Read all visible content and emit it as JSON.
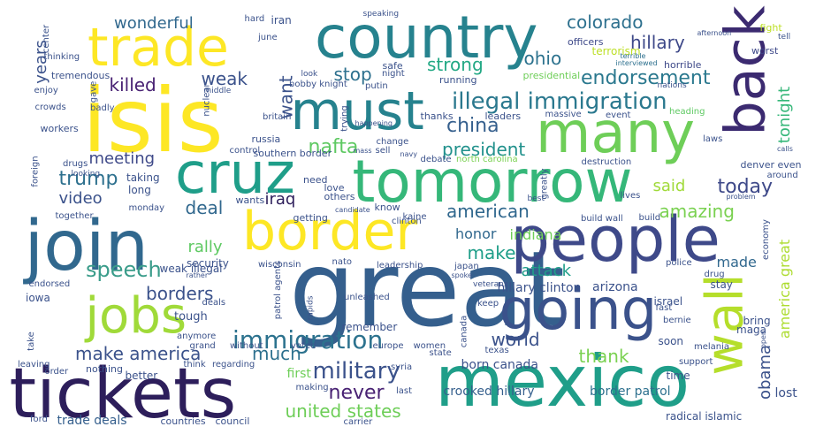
{
  "words": [
    {
      "text": "great",
      "color": "#355f8d"
    },
    {
      "text": "isis",
      "color": "#fde725"
    },
    {
      "text": "mexico",
      "color": "#1f9e89"
    },
    {
      "text": "tickets",
      "color": "#2d1e5b"
    },
    {
      "text": "people",
      "color": "#3e4989"
    },
    {
      "text": "join",
      "color": "#31688e"
    },
    {
      "text": "country",
      "color": "#26828e"
    },
    {
      "text": "tomorrow",
      "color": "#35b779"
    },
    {
      "text": "border",
      "color": "#fde725"
    },
    {
      "text": "many",
      "color": "#6ece58"
    },
    {
      "text": "going",
      "color": "#3b528b"
    },
    {
      "text": "wall",
      "color": "#b5de2b"
    },
    {
      "text": "back",
      "color": "#3b2a70"
    },
    {
      "text": "cruz",
      "color": "#1f9e89"
    },
    {
      "text": "must",
      "color": "#26828e"
    },
    {
      "text": "trade",
      "color": "#fde725"
    },
    {
      "text": "jobs",
      "color": "#a0da39"
    },
    {
      "text": "illegal immigration",
      "color": "#2a788e"
    },
    {
      "text": "immigration",
      "color": "#2c728e"
    },
    {
      "text": "speech",
      "color": "#3a9c8a"
    },
    {
      "text": "make america",
      "color": "#3b528b"
    },
    {
      "text": "trump",
      "color": "#2d708e"
    },
    {
      "text": "military",
      "color": "#3b528b"
    },
    {
      "text": "united states",
      "color": "#6ece58"
    },
    {
      "text": "never",
      "color": "#482173"
    },
    {
      "text": "endorsement",
      "color": "#2a788e"
    },
    {
      "text": "today",
      "color": "#3e4989"
    },
    {
      "text": "china",
      "color": "#355f8d"
    },
    {
      "text": "president",
      "color": "#21918c"
    },
    {
      "text": "nafta",
      "color": "#5ec962"
    },
    {
      "text": "amazing",
      "color": "#7ad151"
    },
    {
      "text": "strong",
      "color": "#22a884"
    },
    {
      "text": "colorado",
      "color": "#2d708e"
    },
    {
      "text": "hillary",
      "color": "#3e4989"
    },
    {
      "text": "ohio",
      "color": "#2c728e"
    },
    {
      "text": "deal",
      "color": "#31688e"
    },
    {
      "text": "thank",
      "color": "#7ad151"
    },
    {
      "text": "obama",
      "color": "#3b528b"
    },
    {
      "text": "world",
      "color": "#3b528b"
    },
    {
      "text": "much",
      "color": "#2d708e"
    },
    {
      "text": "make",
      "color": "#1f9e89"
    },
    {
      "text": "tonight",
      "color": "#35b779"
    },
    {
      "text": "america great",
      "color": "#addc30"
    },
    {
      "text": "american",
      "color": "#31688e"
    },
    {
      "text": "borders",
      "color": "#3b528b"
    },
    {
      "text": "weak",
      "color": "#3b528b"
    },
    {
      "text": "killed",
      "color": "#482173"
    },
    {
      "text": "wonderful",
      "color": "#31688e"
    },
    {
      "text": "stop",
      "color": "#2d708e"
    },
    {
      "text": "want",
      "color": "#3b528b"
    },
    {
      "text": "years",
      "color": "#3b528b"
    },
    {
      "text": "video",
      "color": "#3b528b"
    },
    {
      "text": "meeting",
      "color": "#3e4989"
    },
    {
      "text": "rally",
      "color": "#5ec962"
    },
    {
      "text": "iraq",
      "color": "#2d1e5b"
    },
    {
      "text": "said",
      "color": "#a0da39"
    },
    {
      "text": "indiana",
      "color": "#6ece58"
    },
    {
      "text": "attack",
      "color": "#1f9e89"
    },
    {
      "text": "made",
      "color": "#31688e"
    },
    {
      "text": "honor",
      "color": "#31688e"
    },
    {
      "text": "hillary clinton",
      "color": "#3b528b"
    },
    {
      "text": "arizona",
      "color": "#3b528b"
    },
    {
      "text": "born canada",
      "color": "#3b528b"
    },
    {
      "text": "crooked hillary",
      "color": "#355f8d"
    },
    {
      "text": "border patrol",
      "color": "#2d708e"
    },
    {
      "text": "trade deals",
      "color": "#355f8d"
    },
    {
      "text": "lost",
      "color": "#3b528b"
    },
    {
      "text": "first",
      "color": "#6ece58"
    },
    {
      "text": "tough",
      "color": "#3b528b"
    },
    {
      "text": "security",
      "color": "#3b528b"
    },
    {
      "text": "iowa",
      "color": "#3b528b"
    },
    {
      "text": "taking",
      "color": "#3b528b"
    },
    {
      "text": "long",
      "color": "#3b528b"
    },
    {
      "text": "weak illegal",
      "color": "#3b528b"
    },
    {
      "text": "israel",
      "color": "#3b528b"
    },
    {
      "text": "stay",
      "color": "#3b528b"
    },
    {
      "text": "bring",
      "color": "#3b528b"
    },
    {
      "text": "maga",
      "color": "#3b528b"
    },
    {
      "text": "soon",
      "color": "#3b528b"
    },
    {
      "text": "remember",
      "color": "#3b528b"
    },
    {
      "text": "time",
      "color": "#3b528b"
    },
    {
      "text": "better",
      "color": "#3b528b"
    },
    {
      "text": "nothing",
      "color": "#3b528b"
    },
    {
      "text": "countries",
      "color": "#3b528b"
    },
    {
      "text": "council",
      "color": "#3b528b"
    },
    {
      "text": "iran",
      "color": "#3b528b"
    },
    {
      "text": "hard",
      "color": "#3b528b"
    },
    {
      "text": "terrorism",
      "color": "#bddf26"
    },
    {
      "text": "officers",
      "color": "#3e4989"
    },
    {
      "text": "horrible",
      "color": "#3e4989"
    },
    {
      "text": "worst",
      "color": "#3e4989"
    },
    {
      "text": "fight",
      "color": "#bddf26"
    },
    {
      "text": "tell",
      "color": "#3b528b"
    },
    {
      "text": "afternoon",
      "color": "#3b528b"
    },
    {
      "text": "terrible",
      "color": "#2d708e"
    },
    {
      "text": "interviewed",
      "color": "#2d708e"
    },
    {
      "text": "safe",
      "color": "#3b528b"
    },
    {
      "text": "night",
      "color": "#3b528b"
    },
    {
      "text": "running",
      "color": "#3b528b"
    },
    {
      "text": "presidential",
      "color": "#6ece58"
    },
    {
      "text": "nations",
      "color": "#3b528b"
    },
    {
      "text": "thanks",
      "color": "#3b528b"
    },
    {
      "text": "leaders",
      "color": "#3b528b"
    },
    {
      "text": "massive",
      "color": "#3b528b"
    },
    {
      "text": "event",
      "color": "#3b528b"
    },
    {
      "text": "heading",
      "color": "#5ec962"
    },
    {
      "text": "laws",
      "color": "#3b528b"
    },
    {
      "text": "calls",
      "color": "#3b528b"
    },
    {
      "text": "denver",
      "color": "#3b528b"
    },
    {
      "text": "even",
      "color": "#3b528b"
    },
    {
      "text": "around",
      "color": "#3b528b"
    },
    {
      "text": "problem",
      "color": "#3b528b"
    },
    {
      "text": "destruction",
      "color": "#3b528b"
    },
    {
      "text": "lives",
      "color": "#3b528b"
    },
    {
      "text": "build",
      "color": "#3b528b"
    },
    {
      "text": "build wall",
      "color": "#3b528b"
    },
    {
      "text": "best",
      "color": "#3b528b"
    },
    {
      "text": "greatly",
      "color": "#3b528b"
    },
    {
      "text": "north carolina",
      "color": "#7ad151"
    },
    {
      "text": "debate",
      "color": "#3b528b"
    },
    {
      "text": "southern border",
      "color": "#3b528b"
    },
    {
      "text": "control",
      "color": "#3b528b"
    },
    {
      "text": "russia",
      "color": "#3b528b"
    },
    {
      "text": "mass",
      "color": "#3b528b"
    },
    {
      "text": "sell",
      "color": "#3b528b"
    },
    {
      "text": "navy",
      "color": "#3b528b"
    },
    {
      "text": "change",
      "color": "#3b528b"
    },
    {
      "text": "britain",
      "color": "#3b528b"
    },
    {
      "text": "trying",
      "color": "#3b528b"
    },
    {
      "text": "happening",
      "color": "#3b528b"
    },
    {
      "text": "bobby knight",
      "color": "#3b528b"
    },
    {
      "text": "putin",
      "color": "#3b528b"
    },
    {
      "text": "middle",
      "color": "#3b528b"
    },
    {
      "text": "nuclear",
      "color": "#3b528b"
    },
    {
      "text": "look",
      "color": "#3b528b"
    },
    {
      "text": "june",
      "color": "#3b528b"
    },
    {
      "text": "speaking",
      "color": "#3b528b"
    },
    {
      "text": "center",
      "color": "#3b528b"
    },
    {
      "text": "thinking",
      "color": "#3b528b"
    },
    {
      "text": "tremendous",
      "color": "#3b528b"
    },
    {
      "text": "enjoy",
      "color": "#3b528b"
    },
    {
      "text": "gave",
      "color": "#3b528b"
    },
    {
      "text": "crowds",
      "color": "#3b528b"
    },
    {
      "text": "badly",
      "color": "#3b528b"
    },
    {
      "text": "workers",
      "color": "#3b528b"
    },
    {
      "text": "foreign",
      "color": "#3b528b"
    },
    {
      "text": "drugs",
      "color": "#3b528b"
    },
    {
      "text": "looking",
      "color": "#3b528b"
    },
    {
      "text": "together",
      "color": "#3b528b"
    },
    {
      "text": "monday",
      "color": "#3b528b"
    },
    {
      "text": "wants",
      "color": "#3b528b"
    },
    {
      "text": "others",
      "color": "#3b528b"
    },
    {
      "text": "candidate",
      "color": "#3b528b"
    },
    {
      "text": "know",
      "color": "#3b528b"
    },
    {
      "text": "getting",
      "color": "#3b528b"
    },
    {
      "text": "need",
      "color": "#3b528b"
    },
    {
      "text": "love",
      "color": "#3b528b"
    },
    {
      "text": "kaine",
      "color": "#3b528b"
    },
    {
      "text": "clinton",
      "color": "#3b528b"
    },
    {
      "text": "deals",
      "color": "#3b528b"
    },
    {
      "text": "rather",
      "color": "#3b528b"
    },
    {
      "text": "endorsed",
      "color": "#3b528b"
    },
    {
      "text": "wisconsin",
      "color": "#3b528b"
    },
    {
      "text": "nato",
      "color": "#3b528b"
    },
    {
      "text": "leadership",
      "color": "#3b528b"
    },
    {
      "text": "japan",
      "color": "#3b528b"
    },
    {
      "text": "spoke",
      "color": "#3b528b"
    },
    {
      "text": "veterans",
      "color": "#3b528b"
    },
    {
      "text": "police",
      "color": "#3b528b"
    },
    {
      "text": "drug",
      "color": "#3b528b"
    },
    {
      "text": "economy",
      "color": "#3b528b"
    },
    {
      "text": "patrol agents",
      "color": "#3b528b"
    },
    {
      "text": "rapids",
      "color": "#3b528b"
    },
    {
      "text": "unleashed",
      "color": "#3b528b"
    },
    {
      "text": "keep",
      "color": "#3b528b"
    },
    {
      "text": "canada",
      "color": "#3b528b"
    },
    {
      "text": "fast",
      "color": "#3b528b"
    },
    {
      "text": "take",
      "color": "#3b528b"
    },
    {
      "text": "anymore",
      "color": "#3b528b"
    },
    {
      "text": "grand",
      "color": "#3b528b"
    },
    {
      "text": "without",
      "color": "#3b528b"
    },
    {
      "text": "voted",
      "color": "#3b528b"
    },
    {
      "text": "europe",
      "color": "#3b528b"
    },
    {
      "text": "women",
      "color": "#3b528b"
    },
    {
      "text": "state",
      "color": "#3b528b"
    },
    {
      "text": "texas",
      "color": "#3b528b"
    },
    {
      "text": "bernie",
      "color": "#3b528b"
    },
    {
      "text": "melania",
      "color": "#3b528b"
    },
    {
      "text": "open",
      "color": "#3b528b"
    },
    {
      "text": "support",
      "color": "#3b528b"
    },
    {
      "text": "leaving",
      "color": "#3b528b"
    },
    {
      "text": "order",
      "color": "#3b528b"
    },
    {
      "text": "think",
      "color": "#3b528b"
    },
    {
      "text": "regarding",
      "color": "#3b528b"
    },
    {
      "text": "making",
      "color": "#3b528b"
    },
    {
      "text": "syria",
      "color": "#3b528b"
    },
    {
      "text": "last",
      "color": "#3b528b"
    },
    {
      "text": "ford",
      "color": "#3b528b"
    },
    {
      "text": "carrier",
      "color": "#3b528b"
    },
    {
      "text": "radical islamic",
      "color": "#3b528b"
    }
  ]
}
